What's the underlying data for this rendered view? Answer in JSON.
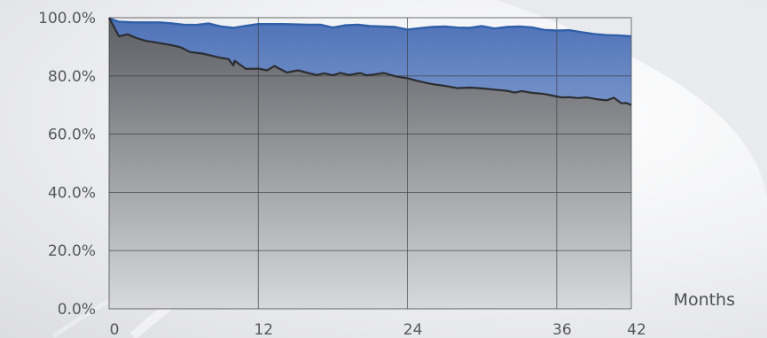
{
  "chart_data": {
    "type": "area",
    "xlabel": "Months",
    "ylabel": "",
    "xlim": [
      0,
      42
    ],
    "ylim": [
      0,
      100
    ],
    "xticks": [
      0,
      12,
      24,
      36,
      42
    ],
    "xtick_labels": [
      "0",
      "12",
      "24",
      "36",
      "42"
    ],
    "yticks": [
      0,
      20,
      40,
      60,
      80,
      100
    ],
    "ytick_labels": [
      "0.0%",
      "20.0%",
      "40.0%",
      "60.0%",
      "80.0%",
      "100.0%"
    ],
    "grid": true,
    "colors": {
      "upper_line": "#2f5fa8",
      "upper_fill_top": "#4f72b8",
      "upper_fill_bottom": "#cfe0f0",
      "lower_line": "#2b2d31",
      "lower_fill_top": "#5c5e63",
      "lower_fill_bottom": "#d8d9dc",
      "grid": "#3a3c40"
    },
    "series": [
      {
        "x": [
          0,
          0.8,
          2,
          4,
          5,
          6,
          7,
          8,
          9,
          10,
          11,
          12,
          13,
          14,
          15,
          16,
          17,
          18,
          19,
          20,
          21,
          22,
          23,
          24,
          25,
          26,
          27,
          28,
          29,
          30,
          31,
          32,
          33,
          34,
          35,
          36,
          37,
          38,
          39,
          40,
          41,
          42
        ],
        "values": [
          99.8,
          98.6,
          98.4,
          98.4,
          98.1,
          97.6,
          97.5,
          98.0,
          97.0,
          96.5,
          97.2,
          97.8,
          97.8,
          97.8,
          97.7,
          97.6,
          97.6,
          96.6,
          97.4,
          97.6,
          97.1,
          97.0,
          96.8,
          95.9,
          96.4,
          96.8,
          97.0,
          96.6,
          96.5,
          97.1,
          96.3,
          96.8,
          97.0,
          96.7,
          95.8,
          95.6,
          95.7,
          95.0,
          94.4,
          94.0,
          93.9,
          93.6
        ]
      },
      {
        "x": [
          0,
          0.8,
          1.5,
          2.2,
          3,
          4,
          5,
          5.8,
          6.5,
          7.5,
          8.3,
          9,
          9.6,
          10.0,
          10.1,
          11,
          12,
          12.7,
          13.3,
          13.7,
          14.3,
          15.2,
          16.0,
          16.7,
          17.3,
          18.0,
          18.6,
          19.3,
          20.2,
          20.7,
          21.3,
          22.1,
          23.0,
          23.5,
          24.0,
          24.7,
          25.5,
          26.1,
          27.0,
          28.0,
          29.0,
          30.0,
          31.0,
          32.0,
          32.6,
          33.2,
          34.0,
          35.0,
          35.8,
          36.4,
          37.0,
          37.7,
          38.4,
          39.2,
          40.0,
          40.6,
          41.2,
          41.6,
          42.0
        ],
        "values": [
          100.0,
          93.6,
          94.3,
          93.0,
          92.0,
          91.3,
          90.6,
          89.8,
          88.2,
          87.7,
          86.9,
          86.2,
          85.8,
          83.6,
          85.2,
          82.4,
          82.5,
          81.9,
          83.4,
          82.5,
          81.2,
          81.9,
          81.0,
          80.3,
          80.9,
          80.2,
          81.0,
          80.3,
          81.0,
          80.2,
          80.5,
          81.0,
          79.9,
          79.5,
          79.2,
          78.4,
          77.6,
          77.1,
          76.6,
          75.8,
          76.0,
          75.7,
          75.3,
          74.9,
          74.3,
          74.8,
          74.2,
          73.8,
          73.1,
          72.6,
          72.7,
          72.4,
          72.6,
          72.0,
          71.6,
          72.5,
          70.6,
          70.7,
          70.0
        ]
      }
    ]
  }
}
